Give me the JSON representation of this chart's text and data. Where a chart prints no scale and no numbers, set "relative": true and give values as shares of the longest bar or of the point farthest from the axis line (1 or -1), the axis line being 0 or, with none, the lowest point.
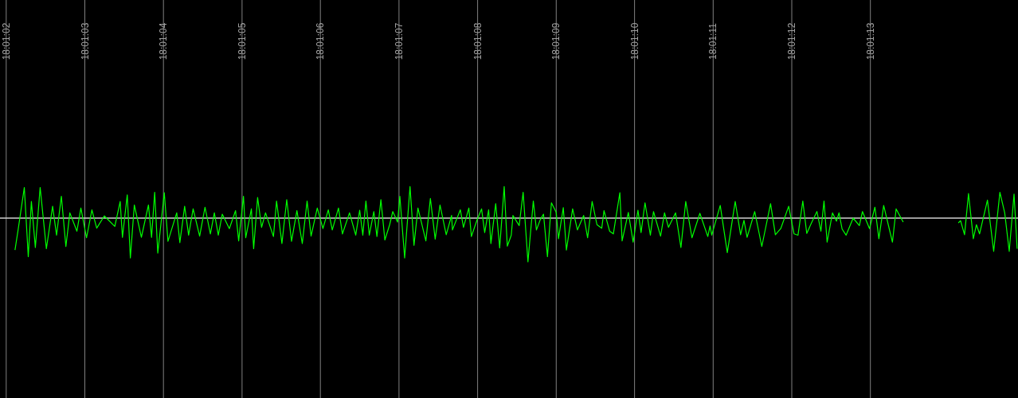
{
  "chart_data": {
    "type": "line",
    "relative": true,
    "grid": "x",
    "tick_labels": "x",
    "xlim": [
      18.0172,
      18.0208
    ],
    "xticks": [
      {
        "value": 18.017222,
        "label": "18:01:02"
      },
      {
        "value": 18.0175,
        "label": "18:01:03"
      },
      {
        "value": 18.017778,
        "label": "18:01:04"
      },
      {
        "value": 18.018056,
        "label": "18:01:05"
      },
      {
        "value": 18.018333,
        "label": "18:01:06"
      },
      {
        "value": 18.018611,
        "label": "18:01:07"
      },
      {
        "value": 18.018889,
        "label": "18:01:08"
      },
      {
        "value": 18.019167,
        "label": "18:01:09"
      },
      {
        "value": 18.019444,
        "label": "18:01:10"
      },
      {
        "value": 18.019722,
        "label": "18:01:11"
      },
      {
        "value": 18.02,
        "label": "18:01:12"
      },
      {
        "value": 18.020278,
        "label": "18:01:13"
      }
    ],
    "series": [
      {
        "color": "#00ff00",
        "x": [
          18.017253,
          18.017264,
          18.017286,
          18.0173,
          18.017311,
          18.017325,
          18.017342,
          18.017364,
          18.017386,
          18.0174,
          18.017417,
          18.017433,
          18.017447,
          18.017472,
          18.017486,
          18.017506,
          18.017525,
          18.017542,
          18.017569,
          18.017606,
          18.017625,
          18.017633,
          18.01765,
          18.017661,
          18.017675,
          18.0177,
          18.017725,
          18.017736,
          18.017747,
          18.017758,
          18.017781,
          18.017794,
          18.017825,
          18.017836,
          18.017853,
          18.017867,
          18.017883,
          18.017906,
          18.017925,
          18.017944,
          18.017958,
          18.017972,
          18.017986,
          18.018011,
          18.018033,
          18.018044,
          18.018061,
          18.018069,
          18.018089,
          18.018097,
          18.018111,
          18.018125,
          18.018139,
          18.018167,
          18.018178,
          18.018197,
          18.018214,
          18.018231,
          18.01825,
          18.018269,
          18.018286,
          18.0183,
          18.018322,
          18.018342,
          18.018361,
          18.018375,
          18.018397,
          18.018411,
          18.018436,
          18.018458,
          18.018472,
          18.018483,
          18.018494,
          18.018506,
          18.018522,
          18.018533,
          18.018547,
          18.018561,
          18.018578,
          18.018589,
          18.018606,
          18.018614,
          18.018631,
          18.01865,
          18.018664,
          18.018678,
          18.018706,
          18.018722,
          18.018739,
          18.018756,
          18.018778,
          18.018797,
          18.0188,
          18.018828,
          18.018839,
          18.018858,
          18.018867,
          18.018886,
          18.018903,
          18.018914,
          18.018928,
          18.018936,
          18.018953,
          18.018967,
          18.018983,
          18.018994,
          18.019008,
          18.019014,
          18.019036,
          18.01905,
          18.019067,
          18.019086,
          18.019097,
          18.019111,
          18.019122,
          18.019136,
          18.01915,
          18.019167,
          18.019175,
          18.019192,
          18.019203,
          18.019225,
          18.019242,
          18.019264,
          18.019278,
          18.019294,
          18.019311,
          18.019328,
          18.019336,
          18.019356,
          18.019369,
          18.019392,
          18.0194,
          18.019422,
          18.019439,
          18.019456,
          18.019467,
          18.019481,
          18.0195,
          18.019511,
          18.019536,
          18.01955,
          18.019564,
          18.019589,
          18.019608,
          18.019625,
          18.019647,
          18.019675,
          18.019703,
          18.019711,
          18.019717,
          18.019747,
          18.019772,
          18.0198,
          18.019819,
          18.019831,
          18.019842,
          18.019869,
          18.019894,
          18.019925,
          18.019942,
          18.019961,
          18.019989,
          18.020008,
          18.020022,
          18.020039,
          18.020053,
          18.020069,
          18.020089,
          18.020103,
          18.020114,
          18.020125,
          18.020144,
          18.020158,
          18.020167,
          18.020178,
          18.020192,
          18.020217,
          18.020239,
          18.02025,
          18.020275,
          18.020294,
          18.020308,
          18.020325,
          18.020356,
          18.020369,
          18.020394,
          18.020492,
          18.020589,
          18.020597,
          18.020611,
          18.020625,
          18.020642,
          18.020653,
          18.020664,
          18.020692,
          18.020714,
          18.020736,
          18.020753,
          18.020769,
          18.020786,
          18.020797
        ],
        "values": [
          -0.73,
          -0.27,
          0.7,
          -0.88,
          0.38,
          -0.67,
          0.7,
          -0.7,
          0.27,
          -0.39,
          0.5,
          -0.65,
          0.12,
          -0.3,
          0.23,
          -0.45,
          0.19,
          -0.23,
          0.05,
          -0.19,
          0.38,
          -0.44,
          0.53,
          -0.91,
          0.3,
          -0.44,
          0.3,
          -0.44,
          0.59,
          -0.8,
          0.58,
          -0.53,
          0.12,
          -0.56,
          0.27,
          -0.39,
          0.21,
          -0.41,
          0.25,
          -0.36,
          0.12,
          -0.39,
          0.09,
          -0.24,
          0.17,
          -0.52,
          0.5,
          -0.45,
          0.21,
          -0.7,
          0.47,
          -0.21,
          0.12,
          -0.42,
          0.39,
          -0.58,
          0.42,
          -0.53,
          0.17,
          -0.58,
          0.39,
          -0.41,
          0.23,
          -0.24,
          0.19,
          -0.27,
          0.23,
          -0.36,
          0.12,
          -0.39,
          0.18,
          -0.39,
          0.39,
          -0.39,
          0.15,
          -0.42,
          0.42,
          -0.5,
          -0.15,
          0.15,
          -0.09,
          0.5,
          -0.91,
          0.72,
          -0.62,
          0.23,
          -0.52,
          0.45,
          -0.48,
          0.3,
          -0.38,
          0.06,
          -0.27,
          0.19,
          -0.21,
          0.23,
          -0.42,
          -0.06,
          0.21,
          -0.33,
          0.19,
          -0.58,
          0.33,
          -0.68,
          0.72,
          -0.64,
          -0.39,
          0.06,
          -0.17,
          0.59,
          -1,
          0.39,
          -0.27,
          -0.03,
          0.09,
          -0.88,
          0.35,
          0.13,
          -0.47,
          0.24,
          -0.73,
          0.21,
          -0.27,
          0.06,
          -0.45,
          0.38,
          -0.15,
          -0.23,
          0.17,
          -0.3,
          -0.36,
          0.58,
          -0.52,
          0.13,
          -0.55,
          0.18,
          -0.33,
          0.35,
          -0.39,
          0.15,
          -0.41,
          0.12,
          -0.21,
          0.12,
          -0.67,
          0.38,
          -0.45,
          0.11,
          -0.42,
          -0.18,
          -0.39,
          0.29,
          -0.79,
          0.38,
          -0.38,
          -0.05,
          -0.44,
          0.15,
          -0.65,
          0.33,
          -0.38,
          -0.24,
          0.27,
          -0.36,
          -0.39,
          0.39,
          -0.35,
          -0.12,
          0.15,
          -0.3,
          0.39,
          -0.55,
          0.12,
          -0.07,
          0.12,
          -0.25,
          -0.39,
          0,
          -0.17,
          0.15,
          -0.24,
          0.25,
          -0.47,
          0.29,
          -0.55,
          0.21,
          -0.09,
          null,
          -0.11,
          -0.06,
          -0.38,
          0.56,
          -0.47,
          -0.15,
          -0.36,
          0.41,
          -0.76,
          0.59,
          0.12,
          -0.76,
          0.55,
          -0.7
        ]
      }
    ]
  }
}
